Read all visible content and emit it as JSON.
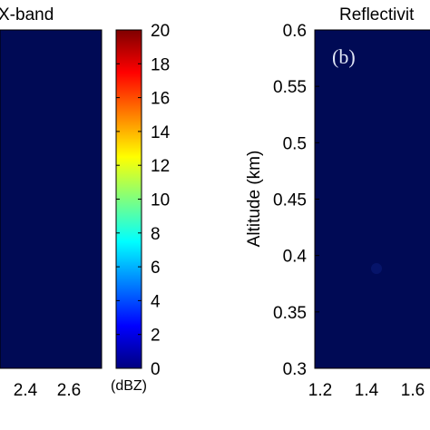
{
  "chart_data": [
    {
      "type": "heatmap",
      "title": "X-band",
      "xlabel": "",
      "ylabel": "",
      "x_tick_labels": [
        "2.4",
        "2.6"
      ],
      "field": "uniform low reflectivity (~0 dBZ)",
      "background_color": "#000a55"
    },
    {
      "type": "heatmap",
      "title": "Reflectivit",
      "panel_label": "(b)",
      "xlabel": "",
      "ylabel": "Altitude (km)",
      "ylim": [
        0.3,
        0.6
      ],
      "y_ticks": [
        0.3,
        0.35,
        0.4,
        0.45,
        0.5,
        0.55,
        0.6
      ],
      "y_tick_labels": [
        "0.3",
        "0.35",
        "0.4",
        "0.45",
        "0.5",
        "0.55",
        "0.6"
      ],
      "x_tick_labels": [
        "1.2",
        "1.4",
        "1.6"
      ],
      "field": "uniform low reflectivity (~0 dBZ)",
      "background_color": "#000a55"
    }
  ],
  "colorbar": {
    "unit": "(dBZ)",
    "range": [
      0,
      20
    ],
    "ticks": [
      0,
      2,
      4,
      6,
      8,
      10,
      12,
      14,
      16,
      18,
      20
    ],
    "tick_labels": [
      "0",
      "2",
      "4",
      "6",
      "8",
      "10",
      "12",
      "14",
      "16",
      "18",
      "20"
    ],
    "colormap": "jet",
    "colors": [
      "#00007f",
      "#0000ff",
      "#007fff",
      "#00ffff",
      "#7fff7f",
      "#ffff00",
      "#ff7f00",
      "#ff0000",
      "#7f0000"
    ]
  }
}
